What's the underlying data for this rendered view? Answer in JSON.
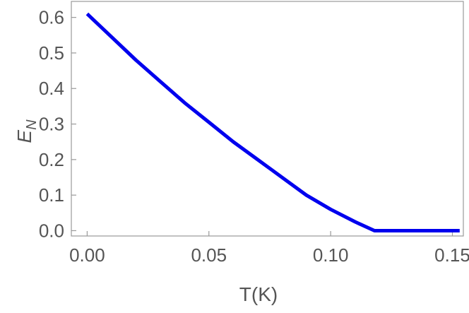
{
  "chart_data": {
    "type": "line",
    "title": "",
    "xlabel": "T(K)",
    "ylabel": {
      "main": "E",
      "subscript": "N"
    },
    "xlim": [
      -0.0065,
      0.1545
    ],
    "ylim": [
      -0.015,
      0.645
    ],
    "x_ticks": [
      0.0,
      0.05,
      0.1,
      0.15
    ],
    "x_tick_labels": [
      "0.00",
      "0.05",
      "0.10",
      "0.15"
    ],
    "y_ticks": [
      0.0,
      0.1,
      0.2,
      0.3,
      0.4,
      0.5,
      0.6
    ],
    "y_tick_labels": [
      "0.0",
      "0.1",
      "0.2",
      "0.3",
      "0.4",
      "0.5",
      "0.6"
    ],
    "grid": false,
    "series": [
      {
        "color": "#0000ee",
        "x": [
          0.0,
          0.01,
          0.02,
          0.03,
          0.04,
          0.05,
          0.06,
          0.07,
          0.08,
          0.09,
          0.1,
          0.11,
          0.118,
          0.13,
          0.14,
          0.153
        ],
        "y": [
          0.61,
          0.545,
          0.48,
          0.42,
          0.36,
          0.305,
          0.25,
          0.2,
          0.15,
          0.1,
          0.06,
          0.025,
          0.0,
          0.0,
          0.0,
          0.0
        ]
      }
    ]
  }
}
